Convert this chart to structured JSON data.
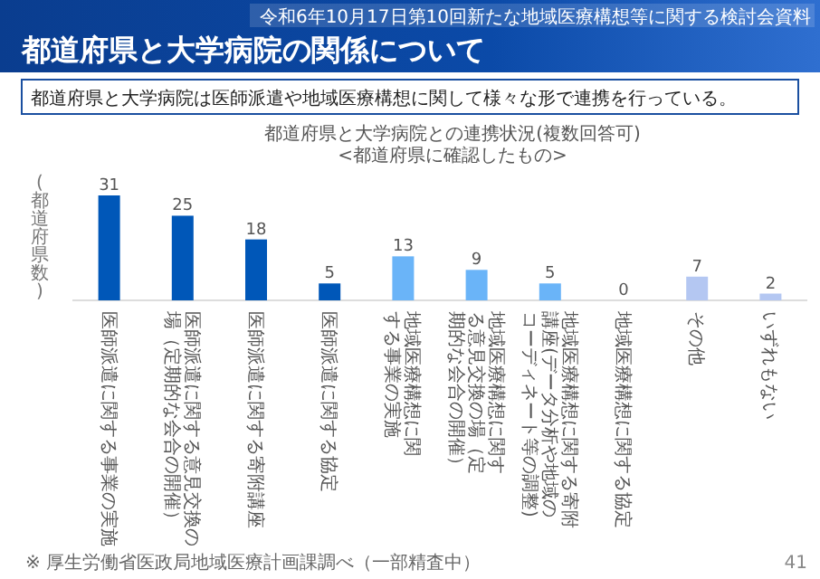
{
  "chart_data": {
    "type": "bar",
    "title": "都道府県と大学病院の関係について",
    "subtitle": "都道府県と大学病院は医師派遣や地域医療構想に関して様々な形で連携を行っている。",
    "ylabel": "(都道府県数)",
    "annotations": [
      "令和6年10月17日第10回新たな地域医療構想等に関する検討会資料",
      "都道府県と大学病院との連携状況(複数回答可)",
      "<都道府県に確認したもの>",
      "※ 厚生労働省医政局地域医療計画課調べ（一部精査中）",
      "41"
    ],
    "categories": [
      "医師派遣に関する事業の実施",
      "医師派遣に関する意見交換の場（定期的な会合の開催）",
      "医師派遣に関する寄附講座",
      "医師派遣に関する協定",
      "地域医療構想に関する事業の実施",
      "地域医療構想に関する意見交換の場（定期的な会合の開催）",
      "地域医療構想に関する寄附講座(データ分析や地域のコーディネート等の調整)",
      "地域医療構想に関する協定",
      "その他",
      "いずれもない"
    ],
    "values": [
      31,
      25,
      18,
      5,
      13,
      9,
      5,
      0,
      7,
      2
    ],
    "colors": [
      "#0057b8",
      "#0057b8",
      "#0057b8",
      "#0057b8",
      "#6ab4f8",
      "#6ab4f8",
      "#6ab4f8",
      "#6ab4f8",
      "#b4c7f2",
      "#b4c7f2"
    ],
    "data_labels": true
  }
}
